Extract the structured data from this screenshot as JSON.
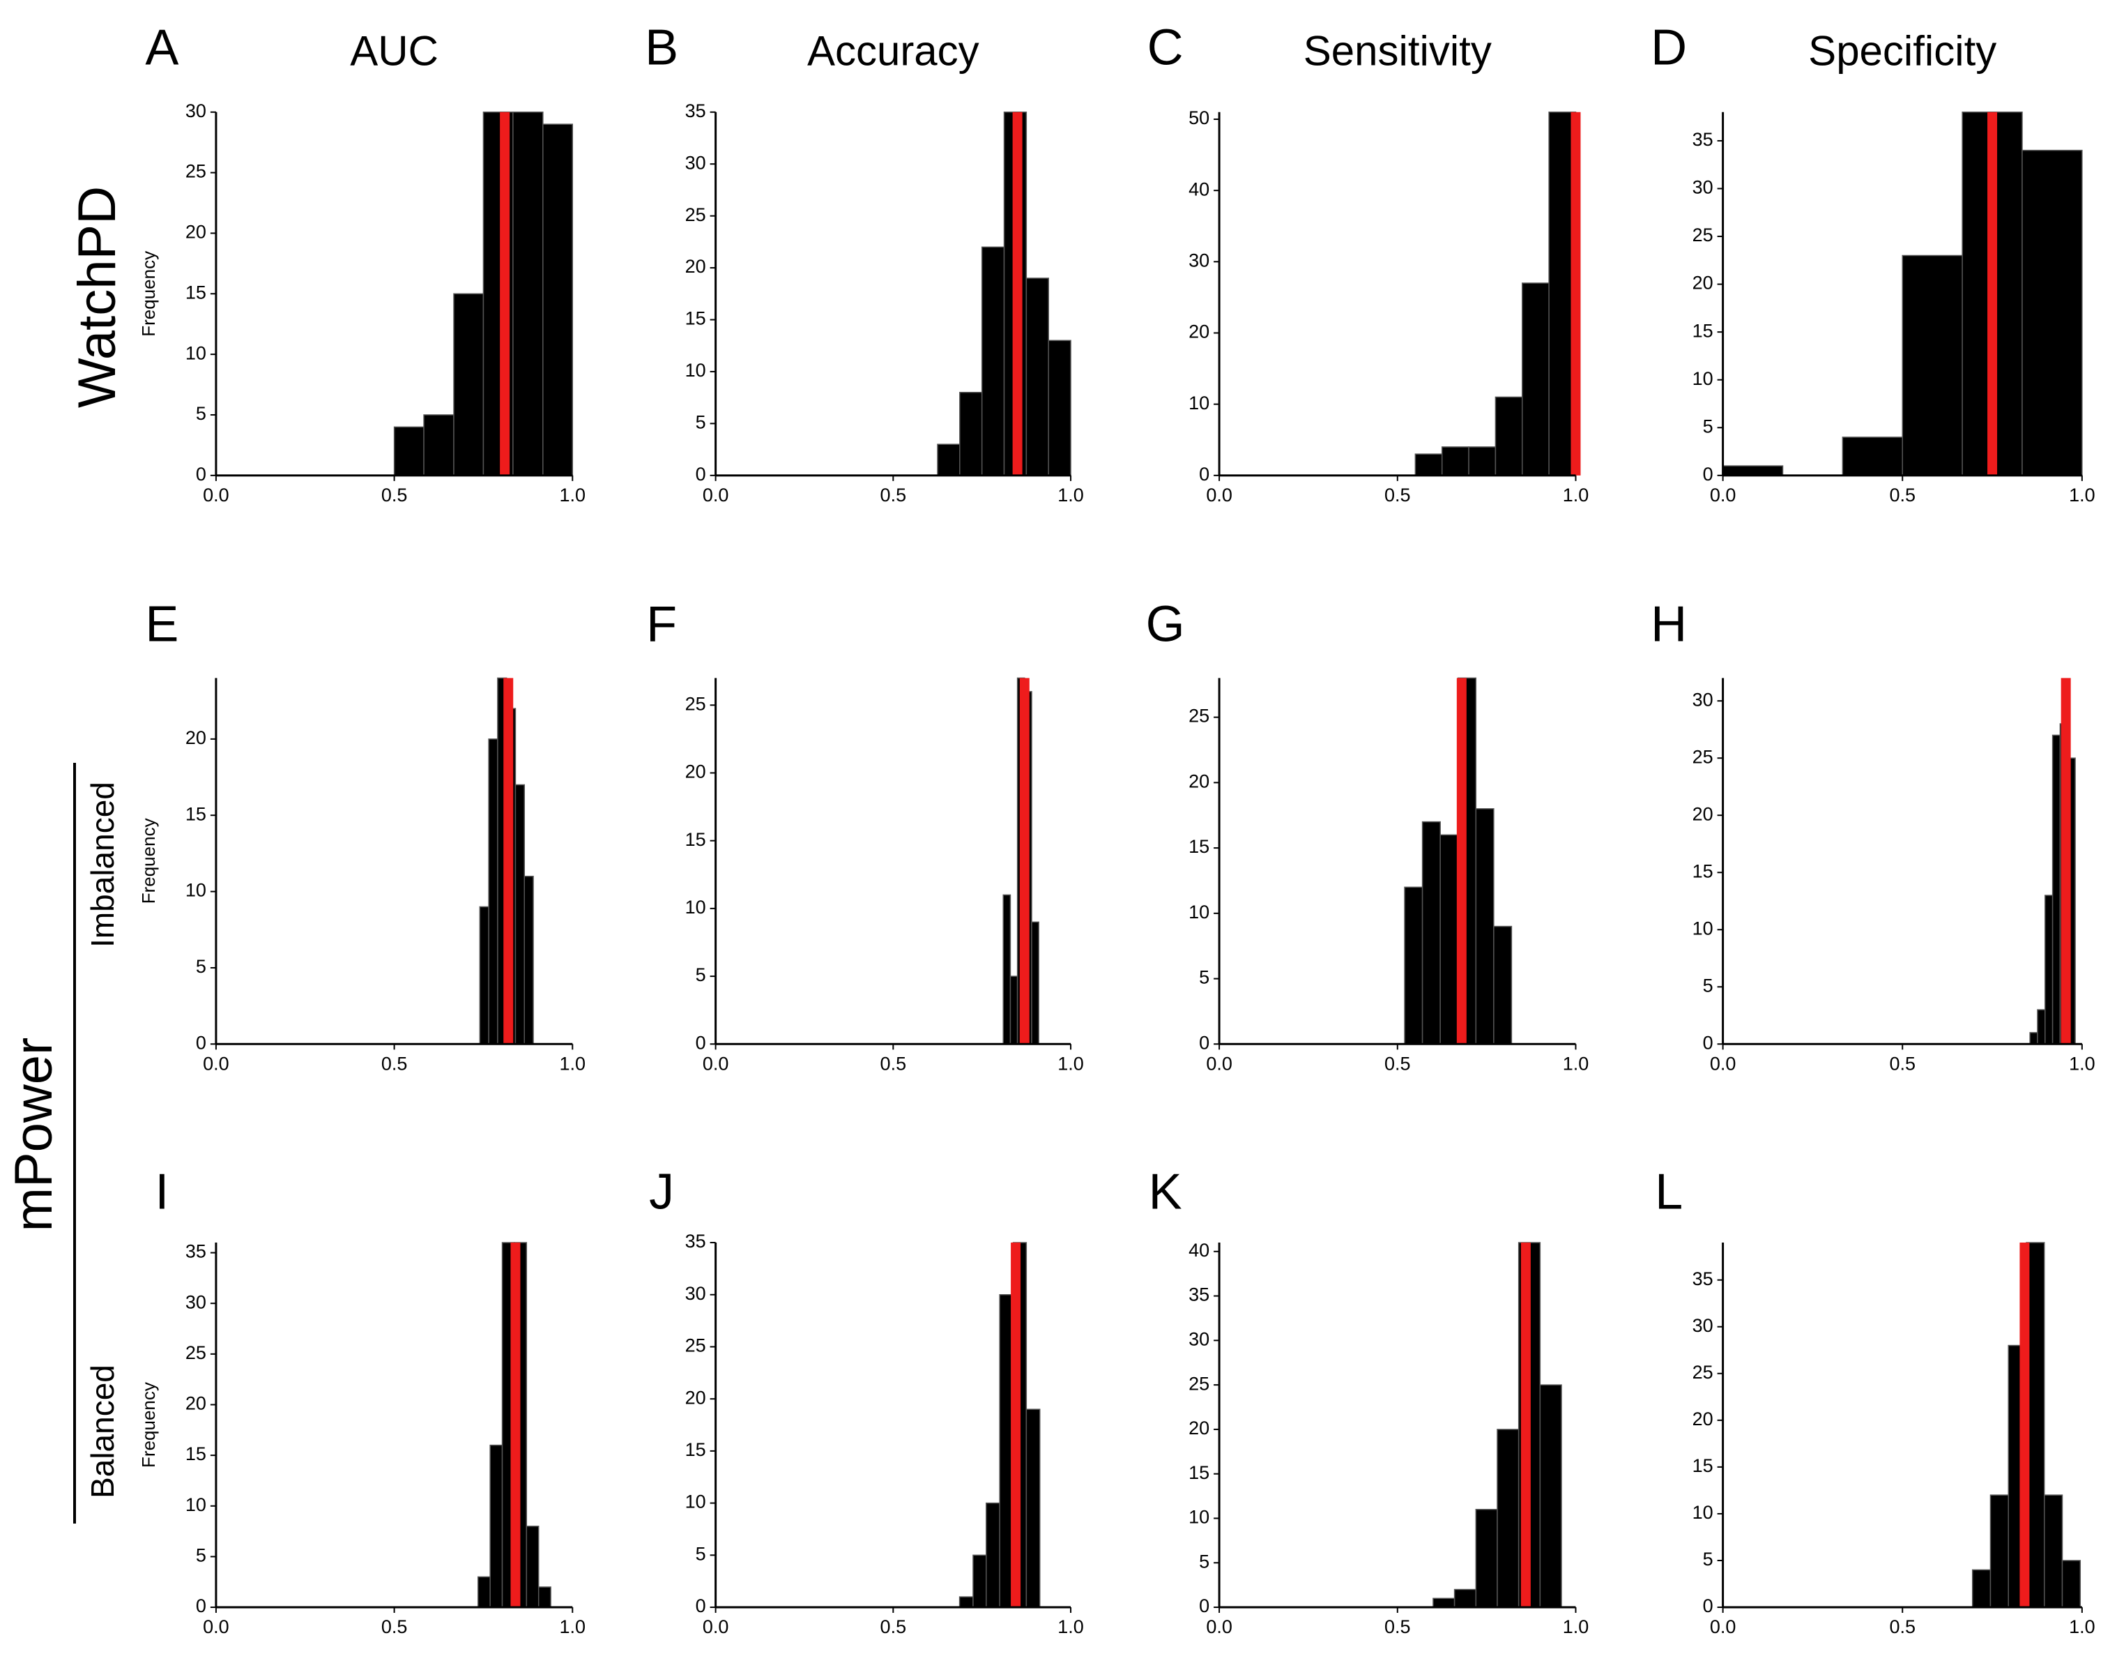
{
  "row_labels": [
    "WatchPD",
    "mPower",
    "Imbalanced",
    "Balanced"
  ],
  "chart_data": [
    {
      "type": "histogram",
      "label": "A",
      "title": "AUC",
      "ylabel": "Frequency",
      "color": "#000000",
      "bins": [
        0.5,
        0.583,
        0.667,
        0.75,
        0.833,
        0.917,
        1.0
      ],
      "counts": [
        4,
        5,
        15,
        30,
        30,
        29
      ],
      "reference_line": {
        "value": 0.81,
        "color": "#ee1c1c"
      },
      "xlim": [
        0,
        1
      ],
      "xticks": [
        {
          "value": 0,
          "label": "0.0"
        },
        0.5,
        {
          "value": 1,
          "label": "1.0"
        }
      ],
      "ylim": [
        0,
        30
      ],
      "yticks": [
        0,
        5,
        10,
        15,
        20,
        25,
        30
      ]
    },
    {
      "type": "histogram",
      "label": "B",
      "title": "Accuracy",
      "color": "#000000",
      "bins": [
        0.625,
        0.6875,
        0.75,
        0.8125,
        0.875,
        0.9375,
        1.0
      ],
      "counts": [
        3,
        8,
        22,
        35,
        19,
        13
      ],
      "reference_line": {
        "value": 0.85,
        "color": "#ee1c1c"
      },
      "xlim": [
        0,
        1
      ],
      "xticks": [
        {
          "value": 0,
          "label": "0.0"
        },
        0.5,
        {
          "value": 1,
          "label": "1.0"
        }
      ],
      "ylim": [
        0,
        35
      ],
      "yticks": [
        0,
        5,
        10,
        15,
        20,
        25,
        30,
        35
      ]
    },
    {
      "type": "histogram",
      "label": "C",
      "title": "Sensitivity",
      "color": "#000000",
      "bins": [
        0.55,
        0.625,
        0.7,
        0.775,
        0.85,
        0.925,
        1.0
      ],
      "counts": [
        3,
        4,
        4,
        11,
        27,
        51
      ],
      "reference_line": {
        "value": 1.0,
        "color": "#ee1c1c"
      },
      "xlim": [
        0,
        1
      ],
      "xticks": [
        {
          "value": 0,
          "label": "0.0"
        },
        0.5,
        {
          "value": 1,
          "label": "1.0"
        }
      ],
      "ylim": [
        0,
        51
      ],
      "yticks": [
        0,
        10,
        20,
        30,
        40,
        50
      ]
    },
    {
      "type": "histogram",
      "label": "D",
      "title": "Specificity",
      "color": "#000000",
      "bins": [
        0,
        0.1667,
        0.3333,
        0.5,
        0.6667,
        0.8333,
        1.0
      ],
      "counts": [
        1,
        0,
        4,
        23,
        38,
        34
      ],
      "reference_line": {
        "value": 0.75,
        "color": "#ee1c1c"
      },
      "xlim": [
        0,
        1
      ],
      "xticks": [
        {
          "value": 0,
          "label": "0.0"
        },
        0.5,
        {
          "value": 1,
          "label": "1.0"
        }
      ],
      "ylim": [
        0,
        38
      ],
      "yticks": [
        0,
        5,
        10,
        15,
        20,
        25,
        30,
        35
      ]
    },
    {
      "type": "histogram",
      "label": "E",
      "ylabel": "Frequency",
      "color": "#000000",
      "bins": [
        0.74,
        0.765,
        0.79,
        0.815,
        0.84,
        0.865,
        0.89
      ],
      "counts": [
        9,
        20,
        24,
        22,
        17,
        11
      ],
      "reference_line": {
        "value": 0.82,
        "color": "#ee1c1c"
      },
      "xlim": [
        0,
        1
      ],
      "xticks": [
        {
          "value": 0,
          "label": "0.0"
        },
        0.5,
        {
          "value": 1,
          "label": "1.0"
        }
      ],
      "ylim": [
        0,
        24
      ],
      "yticks": [
        0,
        5,
        10,
        15,
        20
      ]
    },
    {
      "type": "histogram",
      "label": "F",
      "color": "#000000",
      "bins": [
        0.81,
        0.83,
        0.85,
        0.87,
        0.89,
        0.91
      ],
      "counts": [
        11,
        5,
        27,
        26,
        9
      ],
      "reference_line": {
        "value": 0.87,
        "color": "#ee1c1c"
      },
      "xlim": [
        0,
        1
      ],
      "xticks": [
        {
          "value": 0,
          "label": "0.0"
        },
        0.5,
        {
          "value": 1,
          "label": "1.0"
        }
      ],
      "ylim": [
        0,
        27
      ],
      "yticks": [
        0,
        5,
        10,
        15,
        20,
        25
      ]
    },
    {
      "type": "histogram",
      "label": "G",
      "color": "#000000",
      "bins": [
        0.52,
        0.57,
        0.62,
        0.67,
        0.72,
        0.77,
        0.82
      ],
      "counts": [
        12,
        17,
        16,
        28,
        18,
        9
      ],
      "reference_line": {
        "value": 0.68,
        "color": "#ee1c1c"
      },
      "xlim": [
        0,
        1
      ],
      "xticks": [
        {
          "value": 0,
          "label": "0.0"
        },
        0.5,
        {
          "value": 1,
          "label": "1.0"
        }
      ],
      "ylim": [
        0,
        28
      ],
      "yticks": [
        0,
        5,
        10,
        15,
        20,
        25
      ]
    },
    {
      "type": "histogram",
      "label": "H",
      "color": "#000000",
      "bins": [
        0.855,
        0.876,
        0.897,
        0.918,
        0.939,
        0.96,
        0.981
      ],
      "counts": [
        1,
        3,
        13,
        27,
        28,
        25
      ],
      "reference_line": {
        "value": 0.955,
        "color": "#ee1c1c"
      },
      "xlim": [
        0,
        1
      ],
      "xticks": [
        {
          "value": 0,
          "label": "0.0"
        },
        0.5,
        {
          "value": 1,
          "label": "1.0"
        }
      ],
      "ylim": [
        0,
        32
      ],
      "yticks": [
        0,
        5,
        10,
        15,
        20,
        25,
        30
      ]
    },
    {
      "type": "histogram",
      "label": "I",
      "ylabel": "Frequency",
      "color": "#000000",
      "bins": [
        0.735,
        0.769,
        0.803,
        0.837,
        0.871,
        0.905,
        0.939
      ],
      "counts": [
        3,
        16,
        36,
        36,
        8,
        2
      ],
      "reference_line": {
        "value": 0.84,
        "color": "#ee1c1c"
      },
      "xlim": [
        0,
        1
      ],
      "xticks": [
        {
          "value": 0,
          "label": "0.0"
        },
        0.5,
        {
          "value": 1,
          "label": "1.0"
        }
      ],
      "ylim": [
        0,
        36
      ],
      "yticks": [
        0,
        5,
        10,
        15,
        20,
        25,
        30,
        35
      ]
    },
    {
      "type": "histogram",
      "label": "J",
      "color": "#000000",
      "bins": [
        0.687,
        0.725,
        0.762,
        0.8,
        0.838,
        0.875,
        0.913
      ],
      "counts": [
        1,
        5,
        10,
        30,
        35,
        19
      ],
      "reference_line": {
        "value": 0.845,
        "color": "#ee1c1c"
      },
      "xlim": [
        0,
        1
      ],
      "xticks": [
        {
          "value": 0,
          "label": "0.0"
        },
        0.5,
        {
          "value": 1,
          "label": "1.0"
        }
      ],
      "ylim": [
        0,
        35
      ],
      "yticks": [
        0,
        5,
        10,
        15,
        20,
        25,
        30,
        35
      ]
    },
    {
      "type": "histogram",
      "label": "K",
      "color": "#000000",
      "bins": [
        0.6,
        0.66,
        0.72,
        0.78,
        0.84,
        0.9,
        0.96
      ],
      "counts": [
        1,
        2,
        11,
        20,
        41,
        25
      ],
      "reference_line": {
        "value": 0.86,
        "color": "#ee1c1c"
      },
      "xlim": [
        0,
        1
      ],
      "xticks": [
        {
          "value": 0,
          "label": "0.0"
        },
        0.5,
        {
          "value": 1,
          "label": "1.0"
        }
      ],
      "ylim": [
        0,
        41
      ],
      "yticks": [
        0,
        5,
        10,
        15,
        20,
        25,
        30,
        35,
        40
      ]
    },
    {
      "type": "histogram",
      "label": "L",
      "color": "#000000",
      "bins": [
        0.695,
        0.745,
        0.795,
        0.845,
        0.895,
        0.945,
        0.995
      ],
      "counts": [
        4,
        12,
        28,
        39,
        12,
        5
      ],
      "reference_line": {
        "value": 0.84,
        "color": "#ee1c1c"
      },
      "xlim": [
        0,
        1
      ],
      "xticks": [
        {
          "value": 0,
          "label": "0.0"
        },
        0.5,
        {
          "value": 1,
          "label": "1.0"
        }
      ],
      "ylim": [
        0,
        39
      ],
      "yticks": [
        0,
        5,
        10,
        15,
        20,
        25,
        30,
        35
      ]
    }
  ]
}
